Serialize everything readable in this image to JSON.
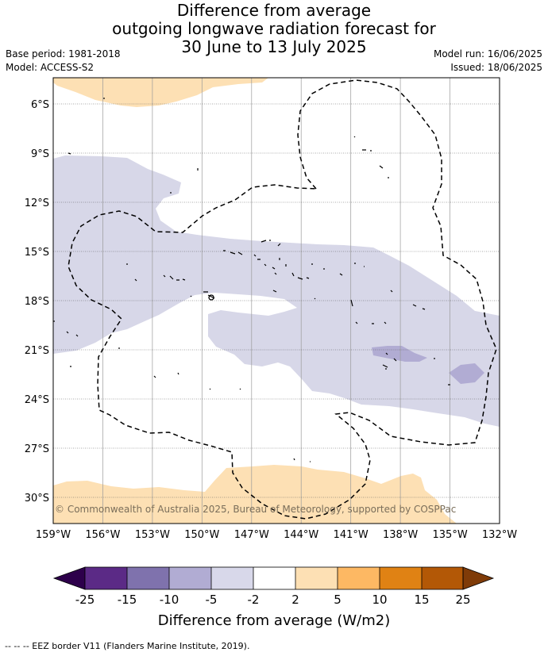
{
  "title": {
    "line1": "Difference from average",
    "line2": "outgoing longwave radiation forecast for",
    "line3": "30 June to 13 July 2025"
  },
  "meta_left": {
    "base_period": "Base period: 1981-2018",
    "model": "Model: ACCESS-S2"
  },
  "meta_right": {
    "model_run": "Model run: 16/06/2025",
    "issued": "Issued: 18/06/2025"
  },
  "map": {
    "lat_labels": [
      "6°S",
      "9°S",
      "12°S",
      "15°S",
      "18°S",
      "21°S",
      "24°S",
      "27°S",
      "30°S"
    ],
    "lon_labels": [
      "159°W",
      "156°W",
      "153°W",
      "150°W",
      "147°W",
      "144°W",
      "141°W",
      "138°W",
      "135°W",
      "132°W"
    ],
    "copyright": "© Commonwealth of Australia 2025, Bureau of Meteorology, supported by COSPPac",
    "colors": {
      "neg_2_to_5": "#d7d7e8",
      "neg_5_to_10": "#b1acd3",
      "pos_2_to_5": "#fde0b4",
      "eez_border": "#000000",
      "gridline": "#9a9a9a"
    }
  },
  "colorbar": {
    "title": "Difference from average (W/m2)",
    "tick_labels": [
      "-25",
      "-15",
      "-10",
      "-5",
      "-2",
      "2",
      "5",
      "10",
      "15",
      "25"
    ],
    "bin_colors": [
      "#5b2a86",
      "#7f72ad",
      "#b1acd3",
      "#d8d8ea",
      "#ffffff",
      "#fde0b4",
      "#fdb863",
      "#e08214",
      "#b35806"
    ],
    "low_extension_color": "#2d004b",
    "high_extension_color": "#7f3b08"
  },
  "footer": "-- -- -- EEZ border V11 (Flanders Marine Institute, 2019)."
}
